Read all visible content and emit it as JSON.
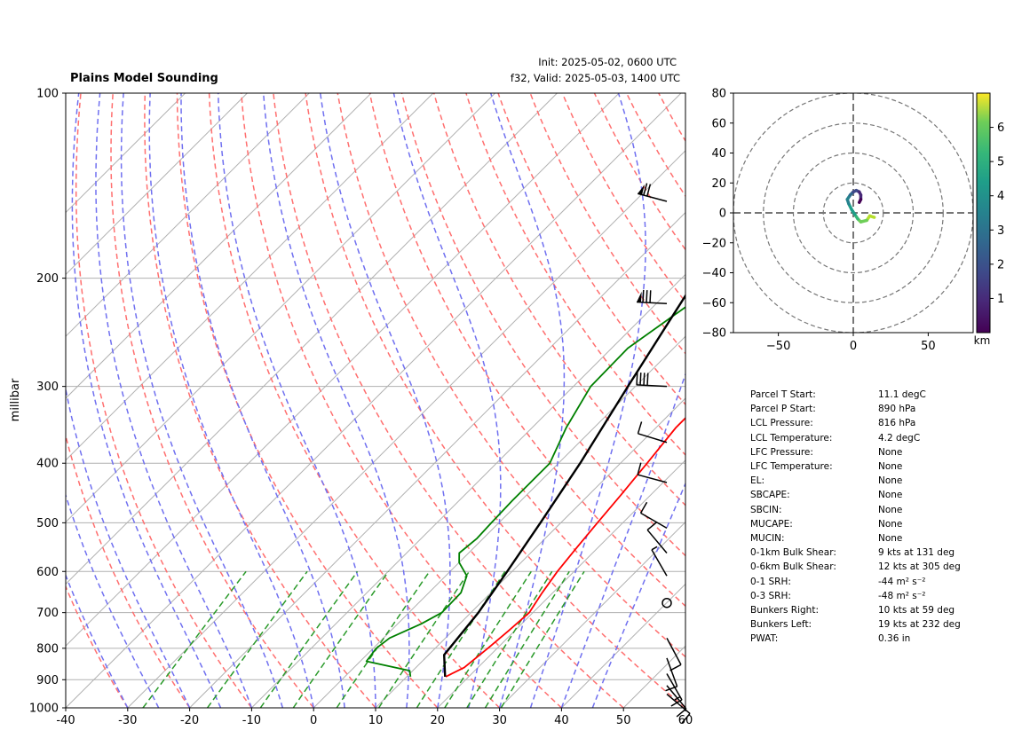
{
  "header": {
    "title": "Plains Model Sounding",
    "init": "Init: 2025-05-02, 0600 UTC",
    "valid": "f32, Valid: 2025-05-03, 1400 UTC"
  },
  "skewt": {
    "ylabel": "millibar",
    "pressure_ticks": [
      100,
      200,
      300,
      400,
      500,
      600,
      700,
      800,
      900,
      1000
    ],
    "temp_ticks": [
      -40,
      -30,
      -20,
      -10,
      0,
      10,
      20,
      30,
      40,
      50,
      60
    ]
  },
  "hodograph": {
    "x_ticks": [
      -50,
      0,
      50
    ],
    "y_ticks": [
      80,
      60,
      40,
      20,
      0,
      -20,
      -40,
      -60,
      -80
    ],
    "colorbar_ticks": [
      1,
      2,
      3,
      4,
      5,
      6
    ],
    "colorbar_unit": "km"
  },
  "colors": {
    "temperature": "#ff0000",
    "dewpoint": "#008000",
    "parcel": "#000000",
    "dry_adiabat": "#ff6f6f",
    "moist_adiabat": "#7070f0",
    "mixing_ratio": "#2a9a2a"
  },
  "params": [
    {
      "label": "Parcel T Start:",
      "value": "11.1 degC"
    },
    {
      "label": "Parcel P Start:",
      "value": "890 hPa"
    },
    {
      "label": "LCL Pressure:",
      "value": "816 hPa"
    },
    {
      "label": "LCL Temperature:",
      "value": "4.2 degC"
    },
    {
      "label": "LFC Pressure:",
      "value": "None"
    },
    {
      "label": "LFC Temperature:",
      "value": "None"
    },
    {
      "label": "EL:",
      "value": "None"
    },
    {
      "label": "SBCAPE:",
      "value": "None"
    },
    {
      "label": "SBCIN:",
      "value": "None"
    },
    {
      "label": "MUCAPE:",
      "value": "None"
    },
    {
      "label": "MUCIN:",
      "value": "None"
    },
    {
      "label": "0-1km Bulk Shear:",
      "value": "9 kts at 131 deg"
    },
    {
      "label": "0-6km Bulk Shear:",
      "value": "12 kts at 305 deg"
    },
    {
      "label": "0-1 SRH:",
      "value": "-44 m² s⁻²"
    },
    {
      "label": "0-3 SRH:",
      "value": "-48 m² s⁻²"
    },
    {
      "label": "Bunkers Right:",
      "value": "10 kts at 59 deg"
    },
    {
      "label": "Bunkers Left:",
      "value": "19 kts at 232 deg"
    },
    {
      "label": "PWAT:",
      "value": "0.36 in"
    }
  ],
  "chart_data": [
    {
      "type": "line",
      "title": "Plains Model Sounding",
      "ylabel": "millibar",
      "xlim": [
        -40,
        60
      ],
      "ylim": [
        1000,
        100
      ],
      "yscale": "log",
      "series": [
        {
          "role": "temperature",
          "points": [
            [
              16.3,
              890
            ],
            [
              17.8,
              860
            ],
            [
              18.5,
              800
            ],
            [
              19,
              750
            ],
            [
              19.4,
              700
            ],
            [
              18.3,
              650
            ],
            [
              17.3,
              600
            ],
            [
              16.6,
              550
            ],
            [
              15.9,
              500
            ],
            [
              15.2,
              450
            ],
            [
              14.3,
              400
            ],
            [
              13.2,
              350
            ],
            [
              13.2,
              330
            ],
            [
              13.5,
              300
            ],
            [
              14.2,
              260
            ],
            [
              16.5,
              220
            ],
            [
              19.4,
              190
            ],
            [
              22.7,
              165
            ],
            [
              27,
              140
            ],
            [
              31.8,
              120
            ],
            [
              36.1,
              105
            ]
          ]
        },
        {
          "role": "dewpoint",
          "points": [
            [
              10.6,
              890
            ],
            [
              9.5,
              870
            ],
            [
              1,
              840
            ],
            [
              0.5,
              800
            ],
            [
              1,
              770
            ],
            [
              3.8,
              730
            ],
            [
              5.3,
              700
            ],
            [
              5.2,
              650
            ],
            [
              3.4,
              610
            ],
            [
              0,
              580
            ],
            [
              -1.5,
              560
            ],
            [
              -1,
              530
            ],
            [
              -1.2,
              500
            ],
            [
              -1.4,
              460
            ],
            [
              -1.4,
              400
            ],
            [
              -4.5,
              350
            ],
            [
              -7.2,
              300
            ],
            [
              -7.4,
              260
            ],
            [
              -4.5,
              220
            ],
            [
              -1.5,
              185
            ],
            [
              -0.1,
              155
            ],
            [
              6.3,
              115
            ],
            [
              9,
              100
            ]
          ]
        },
        {
          "role": "parcel",
          "points": [
            [
              16.2,
              890
            ],
            [
              12.5,
              820
            ],
            [
              11.2,
              700
            ],
            [
              9.2,
              600
            ],
            [
              6.7,
              500
            ],
            [
              3.5,
              400
            ],
            [
              -1.2,
              300
            ],
            [
              -7.6,
              200
            ],
            [
              -11.3,
              150
            ],
            [
              -12.4,
              125
            ],
            [
              -12.2,
              100
            ]
          ]
        }
      ]
    },
    {
      "type": "line",
      "role": "hodograph",
      "xlim": [
        -80,
        80
      ],
      "ylim": [
        -80,
        80
      ],
      "colorbar": {
        "label": "km",
        "range": [
          0,
          7
        ]
      },
      "points": [
        [
          14,
          -3
        ],
        [
          11,
          -2
        ],
        [
          9,
          -5
        ],
        [
          5,
          -6
        ],
        [
          3,
          -4
        ],
        [
          1,
          -1
        ],
        [
          -1,
          2
        ],
        [
          -3,
          6
        ],
        [
          -4,
          9
        ],
        [
          -2,
          12
        ],
        [
          0,
          14
        ],
        [
          2,
          15
        ],
        [
          4,
          14
        ],
        [
          5,
          12
        ],
        [
          5,
          9
        ],
        [
          4,
          7
        ]
      ]
    }
  ]
}
